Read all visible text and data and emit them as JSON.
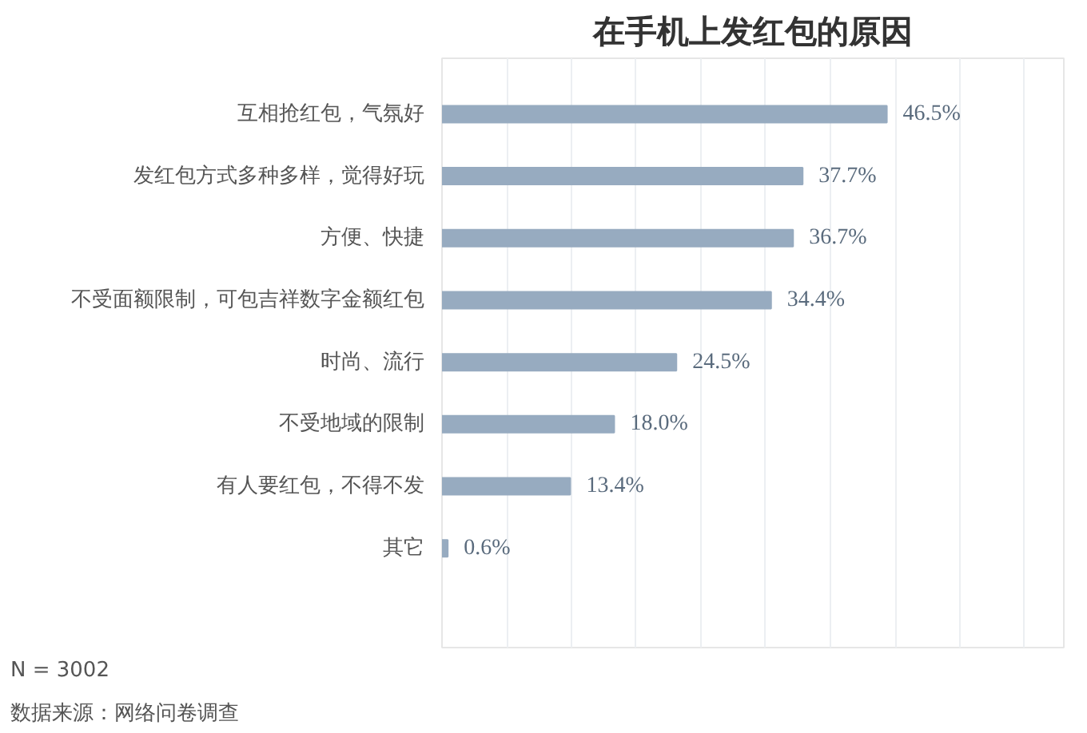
{
  "chart_data": {
    "type": "bar",
    "orientation": "horizontal",
    "title": "在手机上发红包的原因",
    "categories": [
      "互相抢红包，气氛好",
      "发红包方式多种多样，觉得好玩",
      "方便、快捷",
      "不受面额限制，可包吉祥数字金额红包",
      "时尚、流行",
      "不受地域的限制",
      "有人要红包，不得不发",
      "其它"
    ],
    "values": [
      46.5,
      37.7,
      36.7,
      34.4,
      24.5,
      18.0,
      13.4,
      0.6
    ],
    "value_labels": [
      "46.5%",
      "37.7%",
      "36.7%",
      "34.4%",
      "24.5%",
      "18.0%",
      "13.4%",
      "0.6%"
    ],
    "color": "#97abc0",
    "xlim": [
      0,
      65
    ],
    "xticks": [
      {
        "value": 0,
        "label": null
      },
      {
        "value": 6.8,
        "label": null
      },
      {
        "value": 13.5,
        "label": null
      },
      {
        "value": 20.3,
        "label": null
      },
      {
        "value": 27.1,
        "label": null
      },
      {
        "value": 33.8,
        "label": null
      },
      {
        "value": 40.6,
        "label": null
      },
      {
        "value": 47.4,
        "label": null
      },
      {
        "value": 54.1,
        "label": null
      },
      {
        "value": 60.9,
        "label": null
      }
    ],
    "grid": "x",
    "tick_labels": "y",
    "annotations": [
      "N = 3002",
      "数据来源：网络问卷调查"
    ]
  }
}
